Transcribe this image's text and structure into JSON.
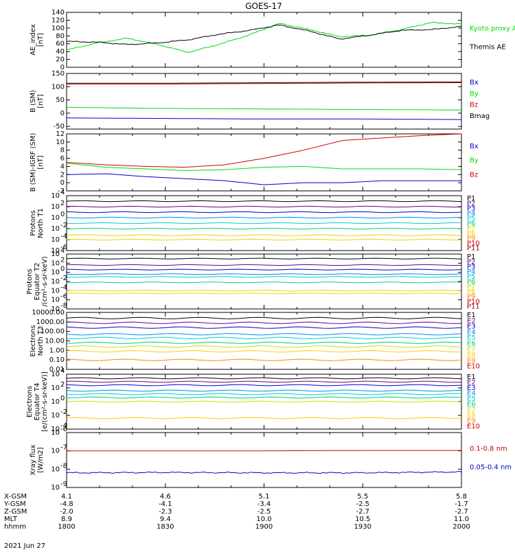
{
  "title": "GOES-17",
  "date": "2021 Jun 27",
  "footer_rows": [
    {
      "label": "X-GSM",
      "values": [
        "4.1",
        "4.6",
        "5.1",
        "5.5",
        "5.8"
      ]
    },
    {
      "label": "Y-GSM",
      "values": [
        "-4.8",
        "-4.1",
        "-3.4",
        "-2.5",
        "-1.7"
      ]
    },
    {
      "label": "Z-GSM",
      "values": [
        "-2.0",
        "-2.3",
        "-2.5",
        "-2.7",
        "-2.7"
      ]
    },
    {
      "label": "MLT",
      "values": [
        "8.9",
        "9.4",
        "10.0",
        "10.5",
        "11.0"
      ]
    },
    {
      "label": "hhmm",
      "values": [
        "1800",
        "1830",
        "1900",
        "1930",
        "2000"
      ]
    }
  ],
  "colors": {
    "black": "#000000",
    "green": "#00dd00",
    "red": "#cc0000",
    "blue": "#0000cc"
  },
  "chart_data": [
    {
      "type": "line",
      "id": "ae",
      "ylabel": [
        "AE_index",
        "[nT]"
      ],
      "ylim": [
        0,
        140
      ],
      "yticks": [
        "0",
        "20",
        "40",
        "60",
        "80",
        "100",
        "120",
        "140"
      ],
      "x": [
        "1800",
        "1810",
        "1820",
        "1830",
        "1840",
        "1850",
        "1855",
        "1900",
        "1910",
        "1920",
        "1930",
        "1940",
        "1950",
        "2000"
      ],
      "series": [
        {
          "name": "Kyoto proxy AE",
          "color": "#00dd00",
          "values": [
            44,
            62,
            74,
            58,
            38,
            58,
            82,
            112,
            96,
            78,
            82,
            96,
            114,
            110
          ]
        },
        {
          "name": "Themis AE",
          "color": "#000000",
          "values": [
            66,
            64,
            58,
            62,
            70,
            84,
            94,
            108,
            92,
            72,
            82,
            94,
            96,
            104
          ]
        }
      ]
    },
    {
      "type": "line",
      "id": "bsm",
      "ylabel": [
        "B (SM)",
        "[nT]"
      ],
      "ylim": [
        -60,
        150
      ],
      "yticks": [
        "-50",
        "0",
        "50",
        "100",
        "150"
      ],
      "x": [
        "1800",
        "1830",
        "1900",
        "1930",
        "2000"
      ],
      "series": [
        {
          "name": "Bx",
          "color": "#0000cc",
          "values": [
            -18,
            -20,
            -22,
            -22,
            -24
          ]
        },
        {
          "name": "By",
          "color": "#00dd00",
          "values": [
            22,
            18,
            16,
            14,
            12
          ]
        },
        {
          "name": "Bz",
          "color": "#cc0000",
          "values": [
            110,
            110,
            112,
            114,
            115
          ]
        },
        {
          "name": "Bmag",
          "color": "#000000",
          "values": [
            113,
            113,
            115,
            117,
            118
          ]
        }
      ]
    },
    {
      "type": "line",
      "id": "bigrf",
      "ylabel": [
        "B (SM)-IGRF (SM)",
        "[nT]"
      ],
      "ylim": [
        -2,
        12
      ],
      "yticks": [
        "-2",
        "0",
        "2",
        "4",
        "6",
        "8",
        "10",
        "12"
      ],
      "x": [
        "1800",
        "1815",
        "1830",
        "1845",
        "1900",
        "1910",
        "1920",
        "1930",
        "1940",
        "1950",
        "2000"
      ],
      "series": [
        {
          "name": "Bx",
          "color": "#0000cc",
          "values": [
            2,
            2.2,
            1.5,
            1,
            0.5,
            -0.5,
            0,
            0,
            0.5,
            0.5,
            0.5
          ]
        },
        {
          "name": "By",
          "color": "#00dd00",
          "values": [
            4.8,
            3.8,
            3.4,
            3.0,
            3.2,
            3.8,
            4.0,
            3.4,
            3.4,
            3.4,
            3.2
          ]
        },
        {
          "name": "Bz",
          "color": "#cc0000",
          "values": [
            5,
            4.4,
            4.0,
            3.8,
            4.4,
            6,
            8,
            10.4,
            11,
            11.6,
            12
          ]
        }
      ]
    },
    {
      "type": "line",
      "id": "p_t1",
      "log": true,
      "ylabel": [
        "Protons",
        "North T1"
      ],
      "ylim_exp": [
        -6,
        4
      ],
      "yticks_exp": [
        -6,
        -4,
        -2,
        0,
        2,
        4
      ],
      "legend": [
        "P1",
        "P2",
        "P3",
        "P4",
        "P5",
        "P6",
        "P7",
        "P8",
        "P9",
        "P10",
        "P11"
      ],
      "legend_colors": [
        "#000000",
        "#660088",
        "#0000cc",
        "#0088ff",
        "#00cccc",
        "#00cc88",
        "#ccdd00",
        "#ffcc00",
        "#ff8800",
        "#cc0000",
        "#990000"
      ],
      "levels_exp": [
        3,
        2,
        1,
        0,
        -1,
        -2,
        -3.2,
        -4
      ]
    },
    {
      "type": "line",
      "id": "p_t2",
      "log": true,
      "ylabel": [
        "Protons",
        "Equator T2",
        "/(cm²-s-sr-keV)"
      ],
      "ylim_exp": [
        -8,
        4
      ],
      "yticks_exp": [
        -8,
        -6,
        -4,
        -2,
        0,
        2,
        4
      ],
      "legend": [
        "P1",
        "P2",
        "P3",
        "P4",
        "P5",
        "P6",
        "P7",
        "P8",
        "P9",
        "P10",
        "P11"
      ],
      "legend_colors": [
        "#000000",
        "#660088",
        "#0000cc",
        "#0088ff",
        "#00cccc",
        "#00cc88",
        "#ccdd00",
        "#ffcc00",
        "#ff8800",
        "#cc0000",
        "#990000"
      ],
      "levels_exp": [
        3,
        1.6,
        0.6,
        -0.4,
        -1,
        -2.2,
        -4,
        -4.6
      ]
    },
    {
      "type": "line",
      "id": "e_t3",
      "log": true,
      "ylabel": [
        "Electrons",
        "North T3"
      ],
      "ylim_exp": [
        -2,
        4
      ],
      "yticks_labels": [
        "0.01",
        "0.10",
        "1.00",
        "10.00",
        "100.00",
        "1000.00",
        "10000.00"
      ],
      "legend": [
        "E1",
        "E2",
        "E3",
        "E4",
        "E5",
        "E6",
        "E7",
        "E8",
        "E9",
        "E10"
      ],
      "legend_colors": [
        "#000000",
        "#660088",
        "#0000cc",
        "#0088ff",
        "#00cccc",
        "#00cc88",
        "#ccdd00",
        "#ffcc00",
        "#ff8800",
        "#cc0000"
      ],
      "levels_exp": [
        3.4,
        2.9,
        2.4,
        1.7,
        1.3,
        0.8,
        0.4,
        -0.1,
        -1
      ]
    },
    {
      "type": "line",
      "id": "e_t4",
      "log": true,
      "ylabel": [
        "Electrons",
        "Equator T4",
        "[e/(cm²-s-sr-keV)]"
      ],
      "ylim_exp": [
        -4,
        4
      ],
      "yticks_exp": [
        -4,
        -2,
        0,
        2,
        4
      ],
      "legend": [
        "E1",
        "E2",
        "E3",
        "E4",
        "E5",
        "E6",
        "E7",
        "E8",
        "E9",
        "E10"
      ],
      "legend_colors": [
        "#000000",
        "#660088",
        "#0000cc",
        "#0088ff",
        "#00cccc",
        "#00cc88",
        "#ccdd00",
        "#ffcc00",
        "#ff8800",
        "#cc0000"
      ],
      "levels_exp": [
        3.4,
        2.9,
        2.4,
        1.6,
        1.1,
        0.6,
        0,
        -2.4
      ]
    },
    {
      "type": "line",
      "id": "xray",
      "log": true,
      "ylabel": [
        "Xray flux",
        "[W/m2]"
      ],
      "ylim_exp": [
        -9,
        -6
      ],
      "yticks_exp": [
        -9,
        -8,
        -7,
        -6
      ],
      "series": [
        {
          "name": "0.1-0.8 nm",
          "color": "#cc0000",
          "values_exp": [
            -7.0,
            -7.0,
            -7.0,
            -6.98,
            -6.98
          ]
        },
        {
          "name": "0.05-0.4 nm",
          "color": "#0000cc",
          "values_exp": [
            -8.2,
            -8.18,
            -8.2,
            -8.2,
            -8.15
          ]
        }
      ]
    }
  ]
}
